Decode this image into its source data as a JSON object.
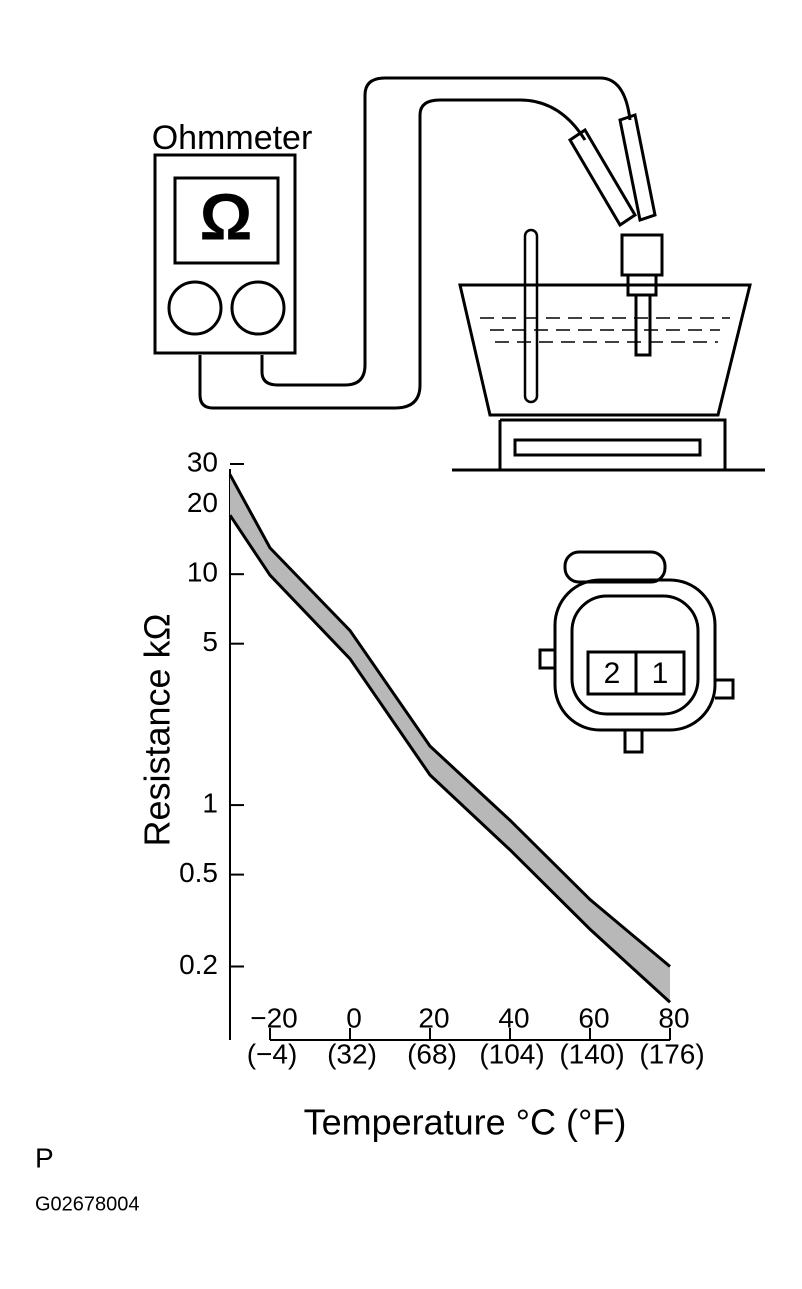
{
  "diagram": {
    "meter_label": "Ohmmeter",
    "meter_symbol": "Ω",
    "connector_pins": [
      "2",
      "1"
    ],
    "footer_letter": "P",
    "figure_code": "G02678004"
  },
  "chart_data": {
    "type": "band",
    "y_label": "Resistance kΩ",
    "x_label": "Temperature °C (°F)",
    "log_y": true,
    "x": [
      -30,
      -20,
      0,
      20,
      40,
      60,
      80
    ],
    "series": [
      {
        "color": "#000000",
        "values": [
          27,
          13,
          5.7,
          1.8,
          0.86,
          0.39,
          0.2
        ]
      },
      {
        "color": "#000000",
        "values": [
          18,
          9.9,
          4.3,
          1.35,
          0.64,
          0.29,
          0.14
        ]
      }
    ],
    "band_fill": "#b8b8b8",
    "xlim": [
      -30,
      80
    ],
    "ylim": [
      0.1,
      30
    ],
    "xticks": [
      {
        "value": -20,
        "label": "−20"
      },
      0,
      20,
      40,
      60,
      80
    ],
    "xtick_sublabels": [
      "(−4)",
      "(32)",
      "(68)",
      "(104)",
      "(140)",
      "(176)"
    ],
    "yticks": [
      30,
      20,
      10,
      5,
      1,
      0.5,
      0.2
    ]
  }
}
